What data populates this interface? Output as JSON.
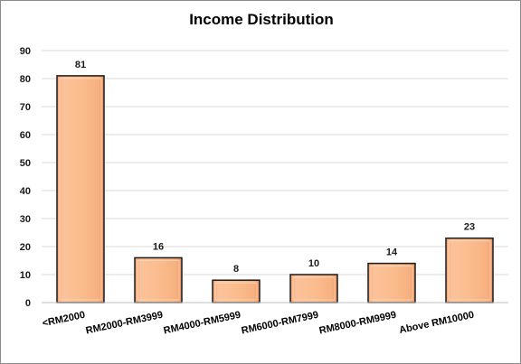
{
  "chart_data": {
    "type": "bar",
    "title": "Income Distribution",
    "categories": [
      "<RM2000",
      "RM2000-RM3999",
      "RM4000-RM5999",
      "RM6000-RM7999",
      "RM8000-RM9999",
      "Above RM10000"
    ],
    "values": [
      81,
      16,
      8,
      10,
      14,
      23
    ],
    "ylim": [
      0,
      90
    ],
    "yticks": [
      0,
      10,
      20,
      30,
      40,
      50,
      60,
      70,
      80,
      90
    ],
    "grid": true,
    "legend": "none",
    "data_labels": true,
    "bar_color": "#fbbd8e",
    "bar_border_color": "#1a1a1a"
  }
}
